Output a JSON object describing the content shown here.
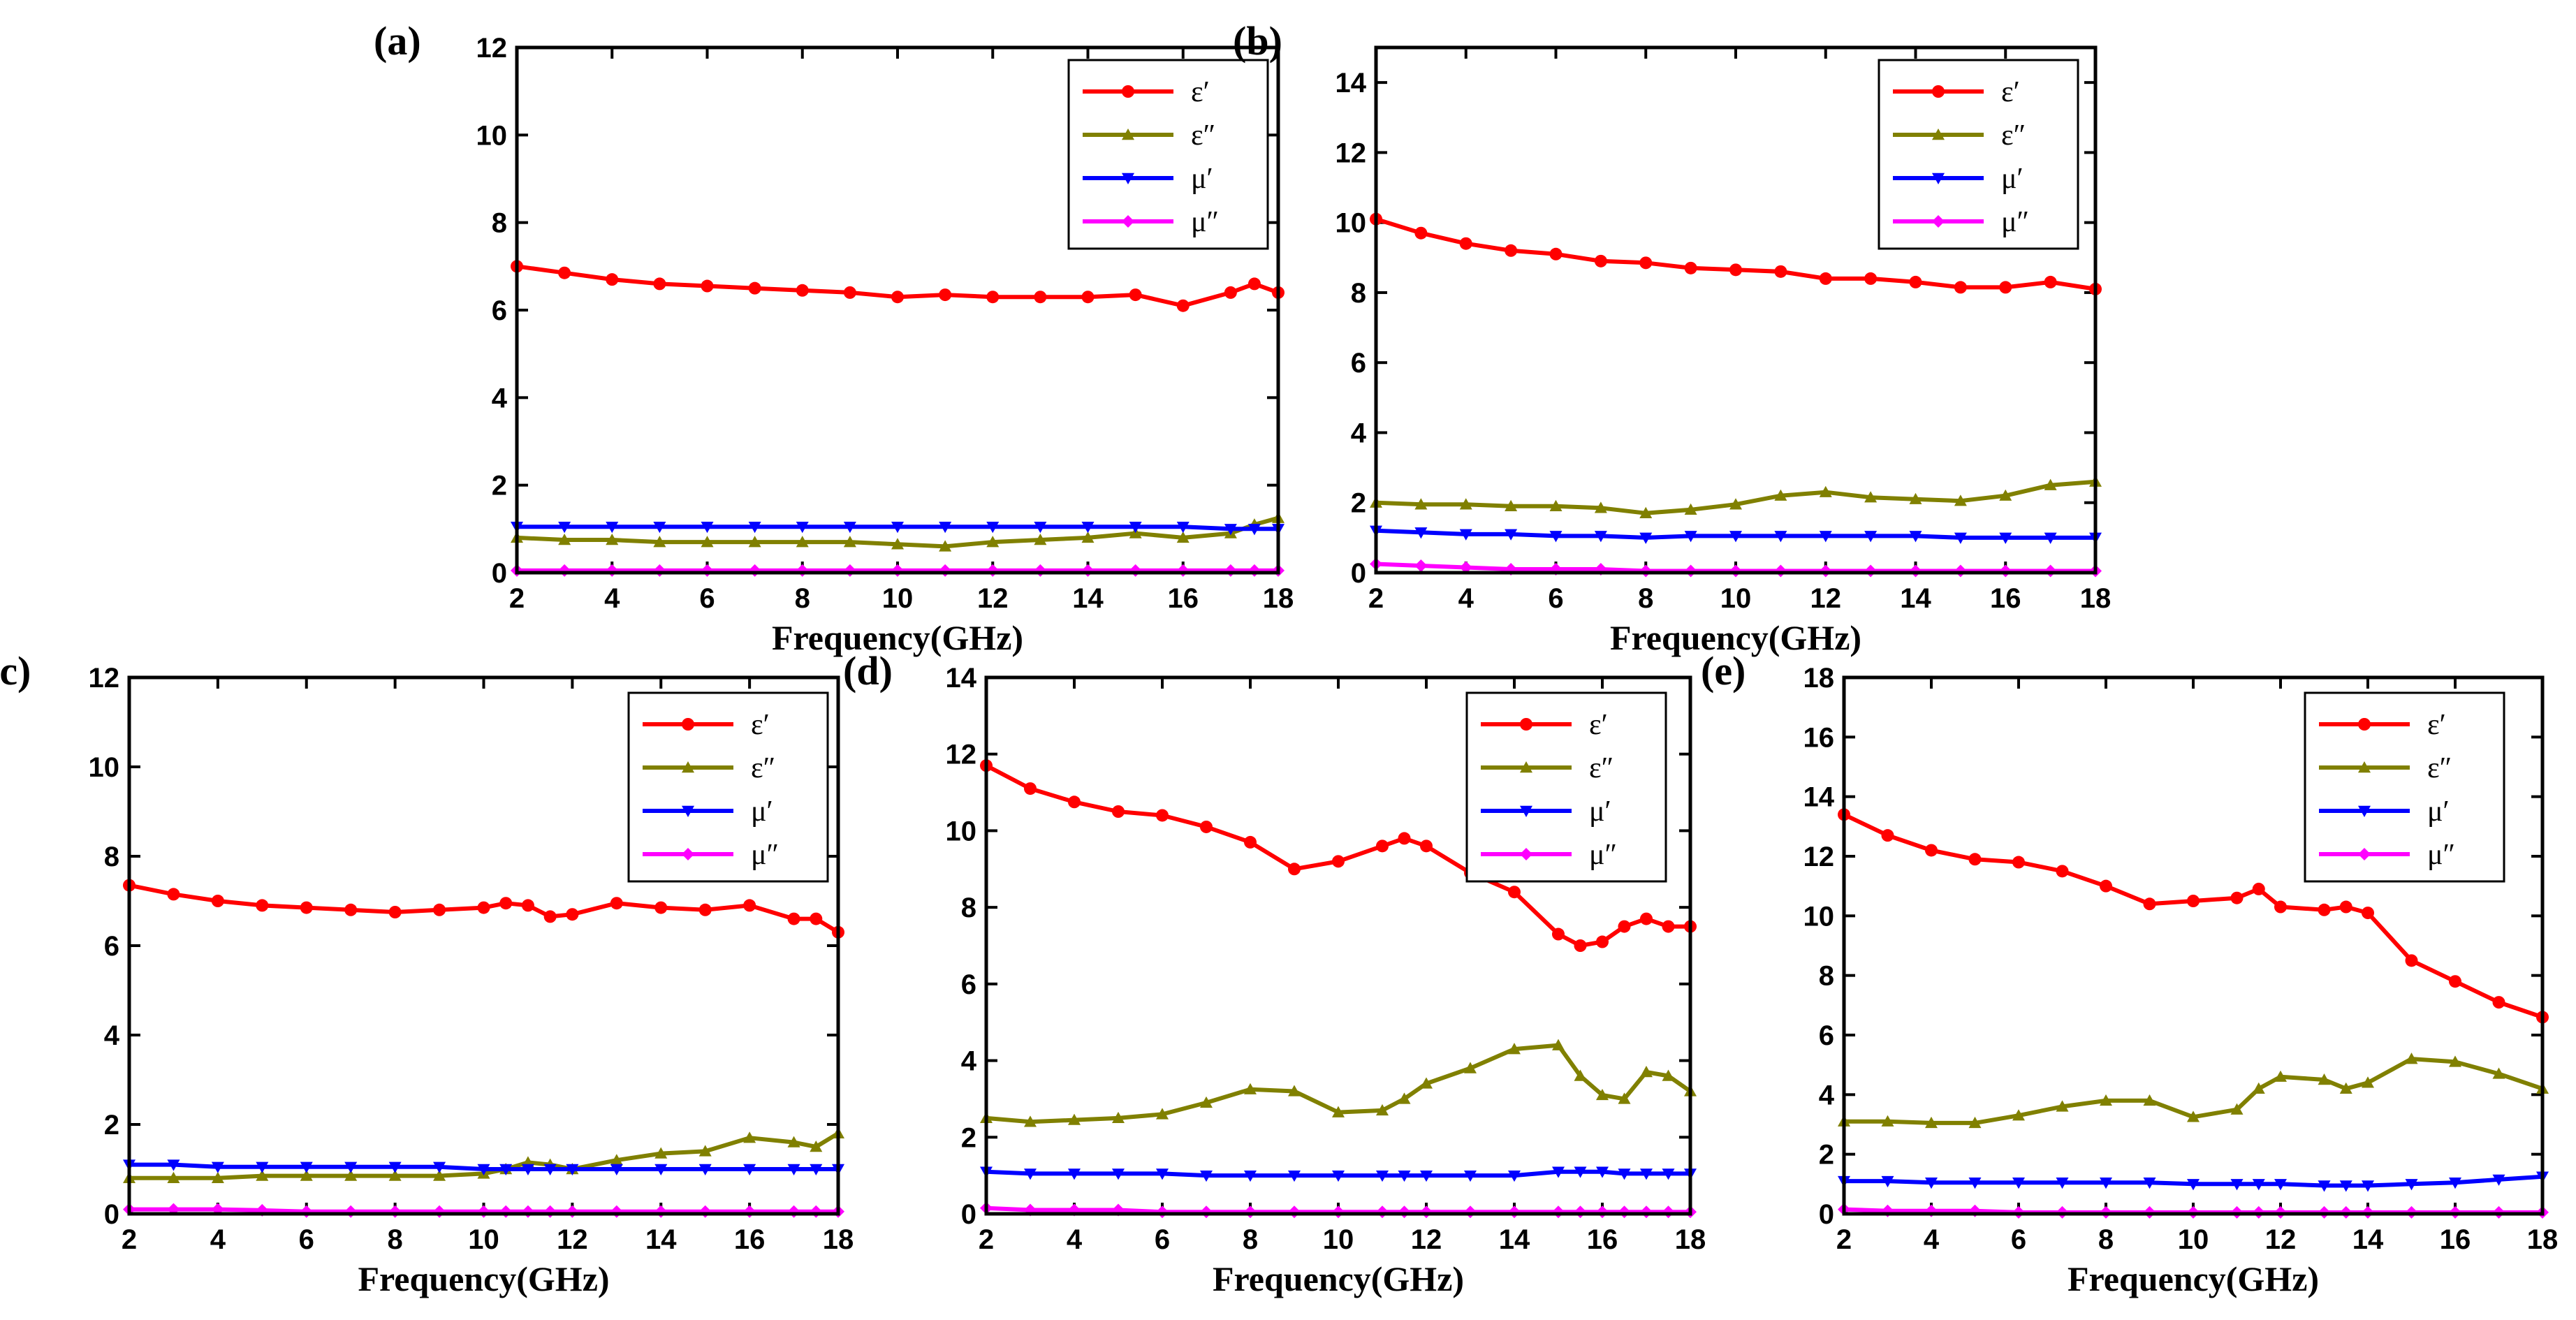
{
  "chart_data": [
    {
      "panel": "(a)",
      "type": "line",
      "xlabel": "Frequency(GHz)",
      "xlim": [
        2,
        18
      ],
      "ylim": [
        0,
        12
      ],
      "xticks": [
        2,
        4,
        6,
        8,
        10,
        12,
        14,
        16,
        18
      ],
      "yticks": [
        0,
        2,
        4,
        6,
        8,
        10,
        12
      ],
      "x": [
        2,
        3,
        4,
        5,
        6,
        7,
        8,
        9,
        10,
        11,
        12,
        13,
        14,
        15,
        16,
        17,
        17.5,
        18
      ],
      "series": [
        {
          "name": "ε′",
          "color": "#ff0000",
          "marker": "circle",
          "values": [
            7.0,
            6.85,
            6.7,
            6.6,
            6.55,
            6.5,
            6.45,
            6.4,
            6.3,
            6.35,
            6.3,
            6.3,
            6.3,
            6.35,
            6.1,
            6.4,
            6.6,
            6.4
          ]
        },
        {
          "name": "ε″",
          "color": "#808000",
          "marker": "triangle-up",
          "values": [
            0.8,
            0.75,
            0.75,
            0.7,
            0.7,
            0.7,
            0.7,
            0.7,
            0.65,
            0.6,
            0.7,
            0.75,
            0.8,
            0.9,
            0.8,
            0.9,
            1.1,
            1.25
          ]
        },
        {
          "name": "μ′",
          "color": "#0000ff",
          "marker": "triangle-down",
          "values": [
            1.05,
            1.05,
            1.05,
            1.05,
            1.05,
            1.05,
            1.05,
            1.05,
            1.05,
            1.05,
            1.05,
            1.05,
            1.05,
            1.05,
            1.05,
            1.0,
            1.0,
            1.0
          ]
        },
        {
          "name": "μ″",
          "color": "#ff00ff",
          "marker": "diamond",
          "values": [
            0.05,
            0.05,
            0.05,
            0.05,
            0.05,
            0.05,
            0.05,
            0.05,
            0.05,
            0.05,
            0.05,
            0.05,
            0.05,
            0.05,
            0.05,
            0.05,
            0.05,
            0.05
          ]
        }
      ]
    },
    {
      "panel": "(b)",
      "type": "line",
      "xlabel": "Frequency(GHz)",
      "xlim": [
        2,
        18
      ],
      "ylim": [
        0,
        15
      ],
      "xticks": [
        2,
        4,
        6,
        8,
        10,
        12,
        14,
        16,
        18
      ],
      "yticks": [
        0,
        2,
        4,
        6,
        8,
        10,
        12,
        14
      ],
      "x": [
        2,
        3,
        4,
        5,
        6,
        7,
        8,
        9,
        10,
        11,
        12,
        13,
        14,
        15,
        16,
        17,
        18
      ],
      "series": [
        {
          "name": "ε′",
          "color": "#ff0000",
          "marker": "circle",
          "values": [
            10.1,
            9.7,
            9.4,
            9.2,
            9.1,
            8.9,
            8.85,
            8.7,
            8.65,
            8.6,
            8.4,
            8.4,
            8.3,
            8.15,
            8.15,
            8.3,
            8.1
          ]
        },
        {
          "name": "ε″",
          "color": "#808000",
          "marker": "triangle-up",
          "values": [
            2.0,
            1.95,
            1.95,
            1.9,
            1.9,
            1.85,
            1.7,
            1.8,
            1.95,
            2.2,
            2.3,
            2.15,
            2.1,
            2.05,
            2.2,
            2.5,
            2.6
          ]
        },
        {
          "name": "μ′",
          "color": "#0000ff",
          "marker": "triangle-down",
          "values": [
            1.2,
            1.15,
            1.1,
            1.1,
            1.05,
            1.05,
            1.0,
            1.05,
            1.05,
            1.05,
            1.05,
            1.05,
            1.05,
            1.0,
            1.0,
            1.0,
            1.0
          ]
        },
        {
          "name": "μ″",
          "color": "#ff00ff",
          "marker": "diamond",
          "values": [
            0.25,
            0.2,
            0.15,
            0.1,
            0.1,
            0.1,
            0.05,
            0.05,
            0.05,
            0.05,
            0.05,
            0.05,
            0.05,
            0.05,
            0.05,
            0.05,
            0.05
          ]
        }
      ]
    },
    {
      "panel": "(c)",
      "type": "line",
      "xlabel": "Frequency(GHz)",
      "xlim": [
        2,
        18
      ],
      "ylim": [
        0,
        12
      ],
      "xticks": [
        2,
        4,
        6,
        8,
        10,
        12,
        14,
        16,
        18
      ],
      "yticks": [
        0,
        2,
        4,
        6,
        8,
        10,
        12
      ],
      "x": [
        2,
        3,
        4,
        5,
        6,
        7,
        8,
        9,
        10,
        10.5,
        11,
        11.5,
        12,
        13,
        14,
        15,
        16,
        17,
        17.5,
        18
      ],
      "series": [
        {
          "name": "ε′",
          "color": "#ff0000",
          "marker": "circle",
          "values": [
            7.35,
            7.15,
            7.0,
            6.9,
            6.85,
            6.8,
            6.75,
            6.8,
            6.85,
            6.95,
            6.9,
            6.65,
            6.7,
            6.95,
            6.85,
            6.8,
            6.9,
            6.6,
            6.6,
            6.3
          ]
        },
        {
          "name": "ε″",
          "color": "#808000",
          "marker": "triangle-up",
          "values": [
            0.8,
            0.8,
            0.8,
            0.85,
            0.85,
            0.85,
            0.85,
            0.85,
            0.9,
            1.0,
            1.15,
            1.1,
            1.0,
            1.2,
            1.35,
            1.4,
            1.7,
            1.6,
            1.5,
            1.8
          ]
        },
        {
          "name": "μ′",
          "color": "#0000ff",
          "marker": "triangle-down",
          "values": [
            1.1,
            1.1,
            1.05,
            1.05,
            1.05,
            1.05,
            1.05,
            1.05,
            1.0,
            1.0,
            1.0,
            1.0,
            1.0,
            1.0,
            1.0,
            1.0,
            1.0,
            1.0,
            1.0,
            1.0
          ]
        },
        {
          "name": "μ″",
          "color": "#ff00ff",
          "marker": "diamond",
          "values": [
            0.1,
            0.1,
            0.1,
            0.08,
            0.05,
            0.05,
            0.05,
            0.05,
            0.05,
            0.05,
            0.05,
            0.05,
            0.05,
            0.05,
            0.05,
            0.05,
            0.05,
            0.05,
            0.05,
            0.05
          ]
        }
      ]
    },
    {
      "panel": "(d)",
      "type": "line",
      "xlabel": "Frequency(GHz)",
      "xlim": [
        2,
        18
      ],
      "ylim": [
        0,
        14
      ],
      "xticks": [
        2,
        4,
        6,
        8,
        10,
        12,
        14,
        16,
        18
      ],
      "yticks": [
        0,
        2,
        4,
        6,
        8,
        10,
        12,
        14
      ],
      "x": [
        2,
        3,
        4,
        5,
        6,
        7,
        8,
        9,
        10,
        11,
        11.5,
        12,
        13,
        14,
        15,
        15.5,
        16,
        16.5,
        17,
        17.5,
        18
      ],
      "series": [
        {
          "name": "ε′",
          "color": "#ff0000",
          "marker": "circle",
          "values": [
            11.7,
            11.1,
            10.75,
            10.5,
            10.4,
            10.1,
            9.7,
            9.0,
            9.2,
            9.6,
            9.8,
            9.6,
            8.9,
            8.4,
            7.3,
            7.0,
            7.1,
            7.5,
            7.7,
            7.5,
            7.5
          ]
        },
        {
          "name": "ε″",
          "color": "#808000",
          "marker": "triangle-up",
          "values": [
            2.5,
            2.4,
            2.45,
            2.5,
            2.6,
            2.9,
            3.25,
            3.2,
            2.65,
            2.7,
            3.0,
            3.4,
            3.8,
            4.3,
            4.4,
            3.6,
            3.1,
            3.0,
            3.7,
            3.6,
            3.2
          ]
        },
        {
          "name": "μ′",
          "color": "#0000ff",
          "marker": "triangle-down",
          "values": [
            1.1,
            1.05,
            1.05,
            1.05,
            1.05,
            1.0,
            1.0,
            1.0,
            1.0,
            1.0,
            1.0,
            1.0,
            1.0,
            1.0,
            1.1,
            1.1,
            1.1,
            1.05,
            1.05,
            1.05,
            1.05
          ]
        },
        {
          "name": "μ″",
          "color": "#ff00ff",
          "marker": "diamond",
          "values": [
            0.15,
            0.1,
            0.1,
            0.1,
            0.05,
            0.05,
            0.05,
            0.05,
            0.05,
            0.05,
            0.05,
            0.05,
            0.05,
            0.05,
            0.05,
            0.05,
            0.05,
            0.05,
            0.05,
            0.05,
            0.05
          ]
        }
      ]
    },
    {
      "panel": "(e)",
      "type": "line",
      "xlabel": "Frequency(GHz)",
      "xlim": [
        2,
        18
      ],
      "ylim": [
        0,
        18
      ],
      "xticks": [
        2,
        4,
        6,
        8,
        10,
        12,
        14,
        16,
        18
      ],
      "yticks": [
        0,
        2,
        4,
        6,
        8,
        10,
        12,
        14,
        16,
        18
      ],
      "x": [
        2,
        3,
        4,
        5,
        6,
        7,
        8,
        9,
        10,
        11,
        11.5,
        12,
        13,
        13.5,
        14,
        15,
        16,
        17,
        18
      ],
      "series": [
        {
          "name": "ε′",
          "color": "#ff0000",
          "marker": "circle",
          "values": [
            13.4,
            12.7,
            12.2,
            11.9,
            11.8,
            11.5,
            11.0,
            10.4,
            10.5,
            10.6,
            10.9,
            10.3,
            10.2,
            10.3,
            10.1,
            8.5,
            7.8,
            7.1,
            6.6
          ]
        },
        {
          "name": "ε″",
          "color": "#808000",
          "marker": "triangle-up",
          "values": [
            3.1,
            3.1,
            3.05,
            3.05,
            3.3,
            3.6,
            3.8,
            3.8,
            3.25,
            3.5,
            4.2,
            4.6,
            4.5,
            4.2,
            4.4,
            5.2,
            5.1,
            4.7,
            4.2
          ]
        },
        {
          "name": "μ′",
          "color": "#0000ff",
          "marker": "triangle-down",
          "values": [
            1.1,
            1.1,
            1.05,
            1.05,
            1.05,
            1.05,
            1.05,
            1.05,
            1.0,
            1.0,
            1.0,
            1.0,
            0.95,
            0.95,
            0.95,
            1.0,
            1.05,
            1.15,
            1.25
          ]
        },
        {
          "name": "μ″",
          "color": "#ff00ff",
          "marker": "diamond",
          "values": [
            0.15,
            0.1,
            0.1,
            0.1,
            0.05,
            0.05,
            0.05,
            0.05,
            0.05,
            0.05,
            0.05,
            0.05,
            0.05,
            0.05,
            0.05,
            0.05,
            0.05,
            0.05,
            0.05
          ]
        }
      ]
    }
  ]
}
